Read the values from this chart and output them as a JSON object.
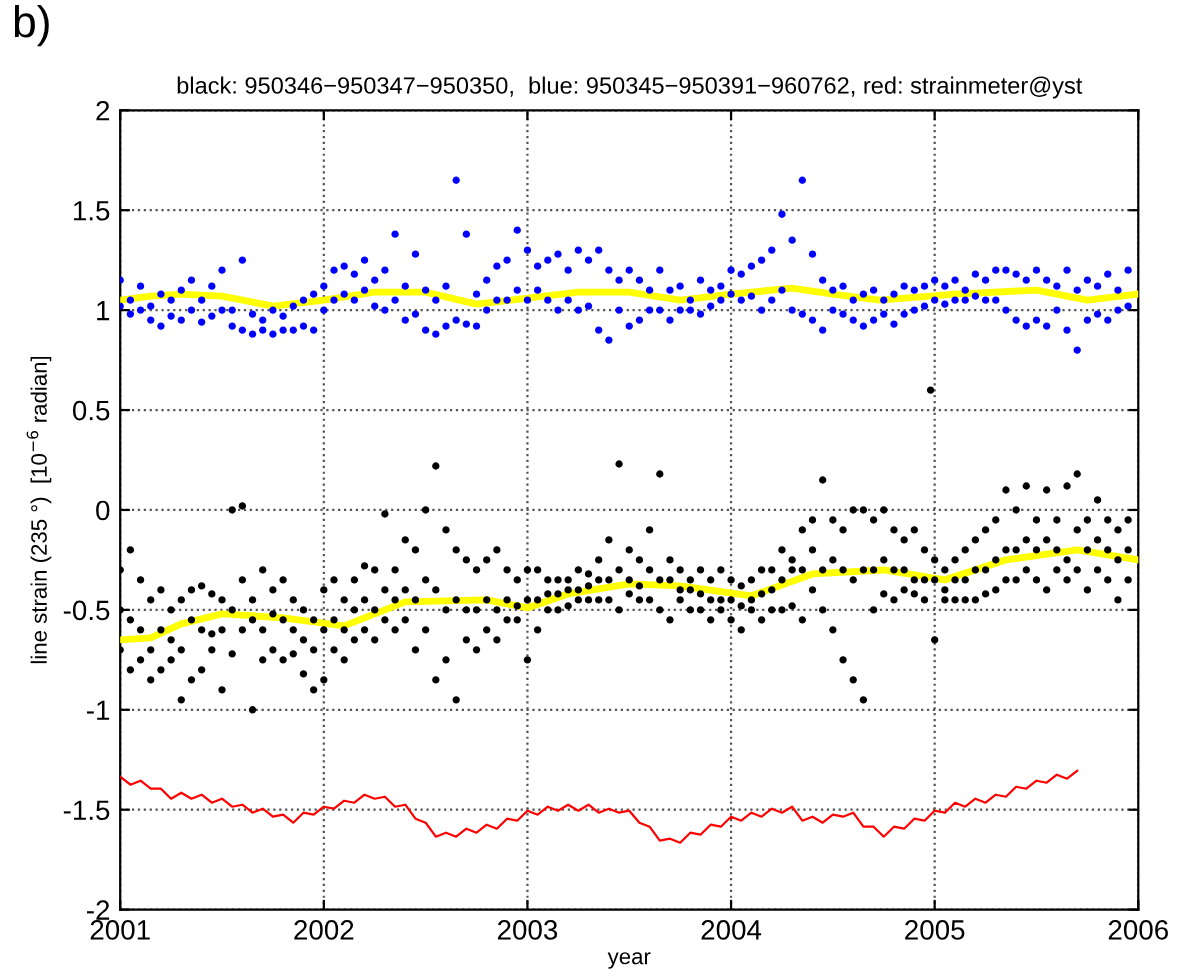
{
  "chart_data": {
    "type": "scatter",
    "title": "black: 950346−950347−950350,  blue: 950345−950391−960762, red: strainmeter@yst",
    "xlabel": "year",
    "ylabel": "line strain (235 °)  [10$^{−6}$ radian]",
    "annotations": [
      "b)"
    ],
    "xlim": [
      2001,
      2006
    ],
    "xticks": [
      2001,
      2002,
      2003,
      2004,
      2005,
      2006
    ],
    "ylim": [
      -2,
      2
    ],
    "yticks": [
      -2,
      -1.5,
      -1,
      -0.5,
      0,
      0.5,
      1,
      1.5,
      2
    ],
    "grid": true,
    "marker": "circle",
    "x": [
      2001.0,
      2001.05,
      2001.1,
      2001.15,
      2001.2,
      2001.25,
      2001.3,
      2001.35,
      2001.4,
      2001.45,
      2001.5,
      2001.55,
      2001.6,
      2001.65,
      2001.7,
      2001.75,
      2001.8,
      2001.85,
      2001.9,
      2001.95,
      2002.0,
      2002.05,
      2002.1,
      2002.15,
      2002.2,
      2002.25,
      2002.3,
      2002.35,
      2002.4,
      2002.45,
      2002.5,
      2002.55,
      2002.6,
      2002.65,
      2002.7,
      2002.75,
      2002.8,
      2002.85,
      2002.9,
      2002.95,
      2003.0,
      2003.05,
      2003.1,
      2003.15,
      2003.2,
      2003.25,
      2003.3,
      2003.35,
      2003.4,
      2003.45,
      2003.5,
      2003.55,
      2003.6,
      2003.65,
      2003.7,
      2003.75,
      2003.8,
      2003.85,
      2003.9,
      2003.95,
      2004.0,
      2004.05,
      2004.1,
      2004.15,
      2004.2,
      2004.25,
      2004.3,
      2004.35,
      2004.4,
      2004.45,
      2004.5,
      2004.55,
      2004.6,
      2004.65,
      2004.7,
      2004.75,
      2004.8,
      2004.85,
      2004.9,
      2004.95,
      2005.0,
      2005.05,
      2005.1,
      2005.15,
      2005.2,
      2005.25,
      2005.3,
      2005.35,
      2005.4,
      2005.45,
      2005.5,
      2005.55,
      2005.6,
      2005.65,
      2005.7,
      2005.75,
      2005.8,
      2005.85,
      2005.9,
      2005.95
    ],
    "series": [
      {
        "color": "#0000ff",
        "values": [
          1.15,
          1.05,
          1.12,
          1.02,
          1.08,
          1.05,
          1.1,
          1.15,
          1.05,
          1.12,
          1.2,
          1.0,
          1.25,
          0.98,
          0.95,
          1.0,
          0.97,
          1.02,
          1.05,
          1.08,
          1.12,
          1.2,
          1.22,
          1.18,
          1.25,
          1.15,
          1.2,
          1.38,
          1.12,
          1.28,
          1.1,
          1.05,
          1.12,
          1.65,
          1.38,
          1.08,
          1.15,
          1.22,
          1.25,
          1.4,
          1.3,
          1.22,
          1.25,
          1.28,
          1.2,
          1.3,
          1.25,
          1.3,
          1.2,
          1.15,
          1.2,
          1.15,
          1.1,
          1.2,
          1.1,
          1.12,
          1.05,
          1.15,
          1.1,
          1.12,
          1.2,
          1.18,
          1.22,
          1.25,
          1.3,
          1.48,
          1.35,
          1.65,
          1.28,
          1.15,
          1.1,
          1.12,
          1.05,
          1.08,
          1.1,
          1.05,
          1.08,
          1.12,
          1.1,
          1.12,
          1.15,
          1.12,
          1.15,
          1.1,
          1.18,
          1.15,
          1.2,
          1.2,
          1.18,
          1.15,
          1.2,
          1.15,
          1.12,
          1.2,
          1.1,
          1.15,
          1.12,
          1.18,
          1.1,
          1.2
        ]
      },
      {
        "color": "#0000ff",
        "values": [
          1.02,
          0.98,
          1.0,
          0.95,
          0.92,
          0.97,
          0.95,
          1.0,
          0.94,
          0.97,
          1.0,
          0.92,
          0.9,
          0.88,
          0.9,
          0.88,
          0.9,
          0.9,
          0.92,
          0.9,
          1.0,
          1.05,
          1.08,
          1.05,
          1.1,
          1.02,
          1.0,
          1.05,
          0.95,
          0.98,
          0.9,
          0.88,
          0.92,
          0.95,
          0.93,
          0.92,
          1.0,
          1.05,
          1.05,
          1.1,
          1.05,
          1.1,
          1.05,
          1.0,
          1.05,
          1.0,
          1.02,
          0.9,
          0.85,
          1.0,
          0.92,
          0.95,
          1.0,
          1.0,
          0.95,
          1.0,
          1.0,
          0.98,
          1.02,
          1.05,
          1.08,
          1.05,
          1.07,
          1.0,
          1.05,
          1.1,
          1.0,
          0.98,
          0.95,
          0.9,
          1.0,
          0.98,
          0.95,
          0.92,
          0.95,
          0.98,
          0.93,
          0.98,
          1.0,
          1.02,
          1.05,
          1.03,
          1.05,
          1.05,
          1.07,
          1.05,
          1.05,
          1.0,
          0.95,
          0.92,
          0.95,
          0.92,
          1.0,
          0.9,
          0.8,
          0.95,
          0.98,
          0.95,
          1.0,
          1.02
        ]
      },
      {
        "color": "#000000",
        "values": [
          -0.3,
          -0.2,
          -0.35,
          -0.45,
          -0.4,
          -0.5,
          -0.45,
          -0.4,
          -0.38,
          -0.42,
          -0.45,
          0.0,
          0.02,
          -0.45,
          -0.3,
          -0.4,
          -0.35,
          -0.45,
          -0.5,
          -0.55,
          -0.4,
          -0.35,
          -0.45,
          -0.35,
          -0.28,
          -0.3,
          -0.02,
          -0.3,
          -0.15,
          -0.2,
          0.0,
          0.22,
          -0.1,
          -0.2,
          -0.25,
          -0.3,
          -0.25,
          -0.2,
          -0.3,
          -0.35,
          -0.3,
          -0.3,
          -0.35,
          -0.35,
          -0.35,
          -0.3,
          -0.32,
          -0.25,
          -0.15,
          0.23,
          -0.2,
          -0.25,
          -0.1,
          0.18,
          -0.25,
          -0.3,
          -0.35,
          -0.3,
          -0.35,
          -0.3,
          -0.35,
          -0.38,
          -0.35,
          -0.3,
          -0.3,
          -0.2,
          -0.25,
          -0.1,
          -0.05,
          0.15,
          -0.05,
          -0.1,
          0.0,
          0.0,
          -0.05,
          0.0,
          -0.1,
          -0.15,
          -0.1,
          -0.2,
          -0.25,
          -0.3,
          -0.25,
          -0.2,
          -0.15,
          -0.1,
          -0.05,
          0.1,
          0.0,
          0.12,
          -0.05,
          0.1,
          -0.05,
          0.12,
          0.18,
          -0.05,
          0.05,
          -0.05,
          -0.1,
          -0.05
        ]
      },
      {
        "color": "#000000",
        "values": [
          -0.5,
          -0.55,
          -0.6,
          -0.7,
          -0.6,
          -0.65,
          -0.7,
          -0.55,
          -0.6,
          -0.62,
          -0.6,
          -0.5,
          -0.35,
          -0.55,
          -0.6,
          -0.52,
          -0.55,
          -0.6,
          -0.65,
          -0.7,
          -0.6,
          -0.55,
          -0.6,
          -0.5,
          -0.45,
          -0.5,
          -0.4,
          -0.45,
          -0.4,
          -0.45,
          -0.35,
          -0.4,
          -0.5,
          -0.45,
          -0.5,
          -0.5,
          -0.45,
          -0.5,
          -0.45,
          -0.48,
          -0.45,
          -0.45,
          -0.42,
          -0.42,
          -0.4,
          -0.4,
          -0.38,
          -0.35,
          -0.35,
          -0.3,
          -0.35,
          -0.38,
          -0.3,
          -0.35,
          -0.35,
          -0.4,
          -0.4,
          -0.42,
          -0.45,
          -0.45,
          -0.45,
          -0.48,
          -0.45,
          -0.42,
          -0.4,
          -0.35,
          -0.3,
          -0.3,
          -0.2,
          -0.3,
          -0.25,
          -0.3,
          -0.35,
          -0.3,
          -0.3,
          -0.25,
          -0.3,
          -0.3,
          -0.35,
          -0.35,
          -0.35,
          -0.4,
          -0.35,
          -0.35,
          -0.3,
          -0.3,
          -0.25,
          -0.2,
          -0.2,
          -0.15,
          -0.2,
          -0.15,
          -0.2,
          -0.25,
          -0.1,
          -0.2,
          -0.15,
          -0.2,
          -0.25,
          -0.2
        ]
      },
      {
        "color": "#000000",
        "values": [
          -0.7,
          -0.8,
          -0.75,
          -0.85,
          -0.8,
          -0.75,
          -0.95,
          -0.85,
          -0.8,
          -0.7,
          -0.9,
          -0.72,
          -0.6,
          -1.0,
          -0.75,
          -0.7,
          -0.75,
          -0.72,
          -0.82,
          -0.9,
          -0.85,
          -0.7,
          -0.75,
          -0.65,
          -0.6,
          -0.65,
          -0.55,
          -0.6,
          -0.55,
          -0.7,
          -0.6,
          -0.85,
          -0.75,
          -0.95,
          -0.65,
          -0.7,
          -0.6,
          -0.65,
          -0.55,
          -0.55,
          -0.75,
          -0.6,
          -0.5,
          -0.5,
          -0.48,
          -0.45,
          -0.45,
          -0.45,
          -0.45,
          -0.5,
          -0.42,
          -0.45,
          -0.45,
          -0.5,
          -0.55,
          -0.45,
          -0.5,
          -0.5,
          -0.55,
          -0.5,
          -0.55,
          -0.6,
          -0.5,
          -0.55,
          -0.5,
          -0.5,
          -0.48,
          -0.55,
          -0.4,
          -0.5,
          -0.6,
          -0.75,
          -0.85,
          -0.95,
          -0.5,
          -0.42,
          -0.45,
          -0.4,
          -0.42,
          -0.45,
          -0.65,
          -0.45,
          -0.45,
          -0.45,
          -0.45,
          -0.42,
          -0.4,
          -0.35,
          -0.35,
          -0.3,
          -0.35,
          -0.4,
          -0.3,
          -0.35,
          -0.3,
          -0.4,
          -0.3,
          -0.35,
          -0.45,
          -0.35
        ]
      },
      {
        "color": "#000000",
        "x": [
          2004.98
        ],
        "values": [
          0.6
        ]
      },
      {
        "type": "line",
        "color": "#ffff00",
        "marker": "none",
        "x": [
          2001.0,
          2001.15,
          2001.3,
          2001.5,
          2001.75,
          2002.0,
          2002.25,
          2002.5,
          2002.75,
          2003.0,
          2003.25,
          2003.5,
          2003.75,
          2004.0,
          2004.3,
          2004.5,
          2004.73,
          2005.1,
          2005.5,
          2005.75,
          2006.0
        ],
        "values": [
          1.05,
          1.07,
          1.08,
          1.07,
          1.02,
          1.05,
          1.09,
          1.09,
          1.03,
          1.06,
          1.09,
          1.09,
          1.05,
          1.08,
          1.11,
          1.08,
          1.05,
          1.08,
          1.1,
          1.05,
          1.08
        ]
      },
      {
        "type": "line",
        "color": "#ffff00",
        "marker": "none",
        "x": [
          2001.0,
          2001.15,
          2001.3,
          2001.5,
          2001.8,
          2002.1,
          2002.4,
          2002.8,
          2003.0,
          2003.2,
          2003.5,
          2003.75,
          2004.1,
          2004.4,
          2004.75,
          2005.05,
          2005.35,
          2005.7,
          2006.0
        ],
        "values": [
          -0.65,
          -0.64,
          -0.57,
          -0.52,
          -0.54,
          -0.58,
          -0.46,
          -0.45,
          -0.49,
          -0.42,
          -0.37,
          -0.38,
          -0.43,
          -0.32,
          -0.3,
          -0.35,
          -0.25,
          -0.2,
          -0.25
        ]
      },
      {
        "type": "line",
        "color": "#ff0000",
        "marker": "none",
        "x": [
          2001.0,
          2001.05,
          2001.1,
          2001.15,
          2001.2,
          2001.25,
          2001.3,
          2001.35,
          2001.4,
          2001.45,
          2001.5,
          2001.55,
          2001.6,
          2001.65,
          2001.7,
          2001.75,
          2001.8,
          2001.85,
          2001.9,
          2001.95,
          2002.0,
          2002.05,
          2002.1,
          2002.15,
          2002.2,
          2002.25,
          2002.3,
          2002.35,
          2002.4,
          2002.45,
          2002.5,
          2002.55,
          2002.6,
          2002.65,
          2002.7,
          2002.75,
          2002.8,
          2002.85,
          2002.9,
          2002.95,
          2003.0,
          2003.05,
          2003.1,
          2003.15,
          2003.2,
          2003.25,
          2003.3,
          2003.35,
          2003.4,
          2003.45,
          2003.5,
          2003.55,
          2003.6,
          2003.65,
          2003.7,
          2003.75,
          2003.8,
          2003.85,
          2003.9,
          2003.95,
          2004.0,
          2004.05,
          2004.1,
          2004.15,
          2004.2,
          2004.25,
          2004.3,
          2004.35,
          2004.4,
          2004.45,
          2004.5,
          2004.55,
          2004.6,
          2004.65,
          2004.7,
          2004.75,
          2004.8,
          2004.85,
          2004.9,
          2004.95,
          2005.0,
          2005.05,
          2005.1,
          2005.15,
          2005.2,
          2005.25,
          2005.3,
          2005.35,
          2005.4,
          2005.45,
          2005.5,
          2005.55,
          2005.6,
          2005.65,
          2005.7
        ],
        "values": [
          -1.335,
          -1.375,
          -1.355,
          -1.395,
          -1.395,
          -1.445,
          -1.415,
          -1.445,
          -1.425,
          -1.465,
          -1.445,
          -1.485,
          -1.475,
          -1.515,
          -1.495,
          -1.535,
          -1.525,
          -1.565,
          -1.515,
          -1.525,
          -1.485,
          -1.495,
          -1.455,
          -1.465,
          -1.425,
          -1.445,
          -1.435,
          -1.485,
          -1.475,
          -1.545,
          -1.565,
          -1.635,
          -1.615,
          -1.635,
          -1.595,
          -1.615,
          -1.575,
          -1.595,
          -1.545,
          -1.555,
          -1.505,
          -1.525,
          -1.485,
          -1.505,
          -1.475,
          -1.505,
          -1.475,
          -1.515,
          -1.495,
          -1.515,
          -1.505,
          -1.565,
          -1.585,
          -1.655,
          -1.645,
          -1.665,
          -1.615,
          -1.625,
          -1.575,
          -1.585,
          -1.535,
          -1.555,
          -1.515,
          -1.535,
          -1.495,
          -1.515,
          -1.485,
          -1.555,
          -1.535,
          -1.565,
          -1.525,
          -1.535,
          -1.515,
          -1.585,
          -1.585,
          -1.635,
          -1.585,
          -1.595,
          -1.545,
          -1.555,
          -1.505,
          -1.515,
          -1.465,
          -1.485,
          -1.445,
          -1.465,
          -1.425,
          -1.435,
          -1.385,
          -1.395,
          -1.355,
          -1.365,
          -1.325,
          -1.345,
          -1.305
        ]
      }
    ]
  }
}
